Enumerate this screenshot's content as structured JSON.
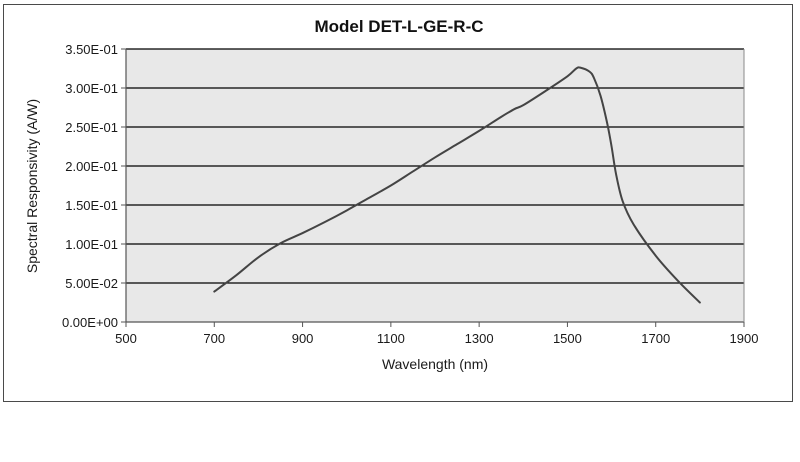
{
  "chart_data": {
    "type": "line",
    "title": "Model DET-L-GE-R-C",
    "xlabel": "Wavelength  (nm)",
    "ylabel": "Spectral Responsivity  (A/W)",
    "xlim": [
      500,
      1900
    ],
    "ylim": [
      0,
      0.35
    ],
    "xticks": [
      500,
      700,
      900,
      1100,
      1300,
      1500,
      1700,
      1900
    ],
    "xtick_labels": [
      "500",
      "700",
      "900",
      "1100",
      "1300",
      "1500",
      "1700",
      "1900"
    ],
    "yticks": [
      0,
      0.05,
      0.1,
      0.15,
      0.2,
      0.25,
      0.3,
      0.35
    ],
    "ytick_labels": [
      "0.00E+00",
      "5.00E-02",
      "1.00E-01",
      "1.50E-01",
      "2.00E-01",
      "2.50E-01",
      "3.00E-01",
      "3.50E-01"
    ],
    "grid": "horizontal",
    "legend": "none",
    "colors": {
      "plot_area": "#e8e8e8",
      "line": "#444444",
      "gridline": "#000000"
    },
    "series": [
      {
        "name": "Spectral Responsivity",
        "x": [
          700,
          750,
          800,
          850,
          900,
          950,
          1000,
          1050,
          1100,
          1150,
          1200,
          1250,
          1300,
          1350,
          1380,
          1400,
          1450,
          1500,
          1520,
          1530,
          1550,
          1560,
          1575,
          1590,
          1600,
          1610,
          1625,
          1650,
          1700,
          1750,
          1800
        ],
        "y": [
          0.039,
          0.06,
          0.083,
          0.101,
          0.114,
          0.128,
          0.143,
          0.159,
          0.175,
          0.193,
          0.211,
          0.228,
          0.245,
          0.263,
          0.273,
          0.278,
          0.296,
          0.315,
          0.325,
          0.326,
          0.321,
          0.313,
          0.29,
          0.255,
          0.225,
          0.19,
          0.155,
          0.125,
          0.085,
          0.053,
          0.025
        ]
      }
    ]
  }
}
